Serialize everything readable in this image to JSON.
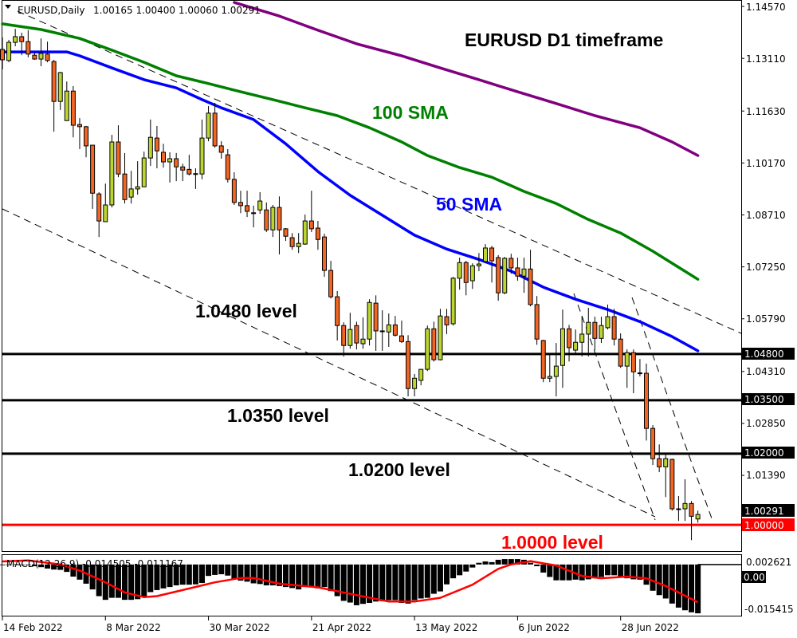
{
  "header": {
    "symbol": "EURUSD,Daily",
    "ohlc": "1.00165 1.00400 1.00060 1.00291"
  },
  "annotations": {
    "title": "EURUSD D1 timeframe",
    "sma100": "100 SMA",
    "sma50": "50 SMA"
  },
  "chart_data": {
    "type": "candlestick",
    "title": "EURUSD D1 timeframe",
    "xlabel": "",
    "ylabel": "",
    "ylim": [
      0.9924,
      1.1475
    ],
    "grid": false,
    "colors": {
      "bull": "#bcd630",
      "bear": "#f26522",
      "outline": "#000000"
    },
    "x_ticks": [
      {
        "label": "14 Feb 2022",
        "bar": 0
      },
      {
        "label": "8 Mar 2022",
        "bar": 16
      },
      {
        "label": "30 Mar 2022",
        "bar": 32
      },
      {
        "label": "21 Apr 2022",
        "bar": 48
      },
      {
        "label": "13 May 2022",
        "bar": 64
      },
      {
        "label": "6 Jun 2022",
        "bar": 80
      },
      {
        "label": "28 Jun 2022",
        "bar": 96
      }
    ],
    "y_ticks": [
      "1.14570",
      "1.13110",
      "1.11630",
      "1.10170",
      "1.08710",
      "1.07250",
      "1.05790",
      "1.04310",
      "1.02850",
      "1.01390"
    ],
    "candles_ohlc": [
      [
        1.1336,
        1.137,
        1.128,
        1.1307
      ],
      [
        1.1305,
        1.1363,
        1.13,
        1.1356
      ],
      [
        1.1356,
        1.1394,
        1.1345,
        1.1372
      ],
      [
        1.1372,
        1.1383,
        1.132,
        1.1358
      ],
      [
        1.1358,
        1.139,
        1.1314,
        1.1323
      ],
      [
        1.132,
        1.1327,
        1.1307,
        1.1309
      ],
      [
        1.1309,
        1.1367,
        1.1289,
        1.1325
      ],
      [
        1.1323,
        1.1358,
        1.13,
        1.1305
      ],
      [
        1.1302,
        1.1307,
        1.1105,
        1.119
      ],
      [
        1.119,
        1.1273,
        1.1166,
        1.1271
      ],
      [
        1.1136,
        1.1246,
        1.1136,
        1.1219
      ],
      [
        1.1219,
        1.1233,
        1.1089,
        1.1123
      ],
      [
        1.1125,
        1.1143,
        1.1056,
        1.1119
      ],
      [
        1.1119,
        1.1121,
        1.1033,
        1.1065
      ],
      [
        1.1067,
        1.1067,
        1.0888,
        1.0932
      ],
      [
        1.093,
        1.0935,
        1.0809,
        1.0854
      ],
      [
        1.0852,
        1.0959,
        1.0852,
        1.0899
      ],
      [
        1.0899,
        1.1096,
        1.0892,
        1.1076
      ],
      [
        1.1076,
        1.1123,
        1.0977,
        1.0986
      ],
      [
        1.0986,
        1.1045,
        1.0903,
        1.0914
      ],
      [
        1.0921,
        1.0995,
        1.0903,
        1.0944
      ],
      [
        1.0944,
        1.1022,
        1.0928,
        1.095
      ],
      [
        1.095,
        1.1049,
        1.095,
        1.1031
      ],
      [
        1.1031,
        1.1139,
        1.1009,
        1.1089
      ],
      [
        1.1087,
        1.1121,
        1.1002,
        1.1051
      ],
      [
        1.1047,
        1.1071,
        1.1004,
        1.102
      ],
      [
        1.102,
        1.1047,
        1.0962,
        1.1029
      ],
      [
        1.1029,
        1.1045,
        1.0966,
        1.1006
      ],
      [
        1.1006,
        1.1015,
        1.0966,
        1.0997
      ],
      [
        1.0999,
        1.104,
        1.0982,
        1.0986
      ],
      [
        1.0986,
        1.1002,
        1.0944,
        1.0987
      ],
      [
        1.0986,
        1.1139,
        1.0971,
        1.1087
      ],
      [
        1.1087,
        1.1177,
        1.1078,
        1.1157
      ],
      [
        1.1157,
        1.1186,
        1.106,
        1.1065
      ],
      [
        1.1065,
        1.1078,
        1.1029,
        1.1047
      ],
      [
        1.104,
        1.1056,
        1.0962,
        1.0971
      ],
      [
        1.0971,
        1.0991,
        1.0899,
        1.0906
      ],
      [
        1.0906,
        1.0939,
        1.0876,
        1.0897
      ],
      [
        1.0897,
        1.0939,
        1.0865,
        1.0881
      ],
      [
        1.0876,
        1.0897,
        1.0836,
        1.0877
      ],
      [
        1.0885,
        1.0935,
        1.0874,
        1.091
      ],
      [
        1.0885,
        1.0906,
        1.0823,
        1.0829
      ],
      [
        1.0829,
        1.0899,
        1.0809,
        1.0892
      ],
      [
        1.0892,
        1.0923,
        1.076,
        1.0829
      ],
      [
        1.0832,
        1.0834,
        1.0798,
        1.0811
      ],
      [
        1.0807,
        1.082,
        1.0773,
        1.0782
      ],
      [
        1.0782,
        1.082,
        1.0764,
        1.0791
      ],
      [
        1.0789,
        1.0872,
        1.0787,
        1.0854
      ],
      [
        1.0854,
        1.0939,
        1.0823,
        1.0832
      ],
      [
        1.0834,
        1.0854,
        1.0773,
        1.0802
      ],
      [
        1.0809,
        1.0818,
        1.0697,
        1.0715
      ],
      [
        1.0715,
        1.0742,
        1.0636,
        1.0641
      ],
      [
        1.0641,
        1.0657,
        1.0518,
        1.056
      ],
      [
        1.056,
        1.0569,
        1.0473,
        1.0504
      ],
      [
        1.0504,
        1.0596,
        1.0495,
        1.0549
      ],
      [
        1.056,
        1.0571,
        1.0493,
        1.0511
      ],
      [
        1.0509,
        1.0583,
        1.0495,
        1.0522
      ],
      [
        1.0522,
        1.0634,
        1.0504,
        1.0625
      ],
      [
        1.0623,
        1.0645,
        1.0489,
        1.0545
      ],
      [
        1.0545,
        1.0603,
        1.0489,
        1.0544
      ],
      [
        1.0542,
        1.0594,
        1.05,
        1.0562
      ],
      [
        1.0562,
        1.0587,
        1.0529,
        1.0533
      ],
      [
        1.0531,
        1.0574,
        1.0511,
        1.0515
      ],
      [
        1.0515,
        1.0533,
        1.0361,
        1.0383
      ],
      [
        1.0383,
        1.0424,
        1.0361,
        1.0412
      ],
      [
        1.0406,
        1.0437,
        1.0392,
        1.0437
      ],
      [
        1.0437,
        1.056,
        1.0432,
        1.0551
      ],
      [
        1.0551,
        1.0571,
        1.0459,
        1.0464
      ],
      [
        1.0464,
        1.0607,
        1.0462,
        1.0587
      ],
      [
        1.0585,
        1.0607,
        1.0536,
        1.0562
      ],
      [
        1.0565,
        1.0697,
        1.056,
        1.0693
      ],
      [
        1.0693,
        1.0751,
        1.0661,
        1.0737
      ],
      [
        1.0737,
        1.0742,
        1.0645,
        1.0681
      ],
      [
        1.0686,
        1.0735,
        1.0663,
        1.0728
      ],
      [
        1.0728,
        1.0764,
        1.0713,
        1.0733
      ],
      [
        1.074,
        1.0789,
        1.0737,
        1.0778
      ],
      [
        1.0778,
        1.0784,
        1.0681,
        1.0742
      ],
      [
        1.0751,
        1.0758,
        1.063,
        1.0652
      ],
      [
        1.0652,
        1.0753,
        1.0648,
        1.0749
      ],
      [
        1.0749,
        1.0762,
        1.0706,
        1.0722
      ],
      [
        1.0722,
        1.0751,
        1.0686,
        1.0699
      ],
      [
        1.0699,
        1.0751,
        1.0652,
        1.0719
      ],
      [
        1.0719,
        1.0773,
        1.0614,
        1.0619
      ],
      [
        1.0619,
        1.0643,
        1.0506,
        1.0522
      ],
      [
        1.0518,
        1.052,
        1.0401,
        1.0412
      ],
      [
        1.0412,
        1.0482,
        1.0401,
        1.0417
      ],
      [
        1.0417,
        1.0511,
        1.0361,
        1.0446
      ],
      [
        1.0448,
        1.0605,
        1.0385,
        1.0551
      ],
      [
        1.0551,
        1.0562,
        1.0459,
        1.0498
      ],
      [
        1.0491,
        1.0549,
        1.048,
        1.0513
      ],
      [
        1.0513,
        1.0587,
        1.0473,
        1.0536
      ],
      [
        1.0536,
        1.061,
        1.0473,
        1.0569
      ],
      [
        1.0569,
        1.0585,
        1.0491,
        1.0524
      ],
      [
        1.0524,
        1.0585,
        1.0511,
        1.056
      ],
      [
        1.0554,
        1.0619,
        1.0549,
        1.0585
      ],
      [
        1.0585,
        1.0607,
        1.0504,
        1.0522
      ],
      [
        1.0522,
        1.0538,
        1.0441,
        1.0446
      ],
      [
        1.0446,
        1.0493,
        1.0385,
        1.0484
      ],
      [
        1.0484,
        1.0493,
        1.037,
        1.043
      ],
      [
        1.0426,
        1.0466,
        1.0417,
        1.0427
      ],
      [
        1.0426,
        1.0453,
        1.0237,
        1.0271
      ],
      [
        1.0271,
        1.028,
        1.0168,
        1.0186
      ],
      [
        1.0186,
        1.0226,
        1.0148,
        1.0163
      ],
      [
        1.0163,
        1.0197,
        1.0078,
        1.0186
      ],
      [
        1.0184,
        1.0186,
        1.004,
        1.0045
      ],
      [
        1.0045,
        1.0081,
        1.0011,
        1.0044
      ],
      [
        1.0045,
        1.0128,
        1.0011,
        1.006
      ],
      [
        1.006,
        1.0067,
        0.9957,
        1.0024
      ],
      [
        1.00165,
        1.004,
        1.0006,
        1.00291
      ]
    ],
    "moving_averages": [
      {
        "name": "50 SMA",
        "color": "#0000ff",
        "points": [
          [
            0,
            1.1329
          ],
          [
            10,
            1.1329
          ],
          [
            12,
            1.1318
          ],
          [
            17,
            1.1284
          ],
          [
            22,
            1.1251
          ],
          [
            27,
            1.1228
          ],
          [
            31,
            1.1195
          ],
          [
            34,
            1.1172
          ],
          [
            39,
            1.1139
          ],
          [
            44,
            1.1071
          ],
          [
            49,
            1.0993
          ],
          [
            54,
            1.0926
          ],
          [
            59,
            1.087
          ],
          [
            64,
            1.0814
          ],
          [
            69,
            1.0775
          ],
          [
            74,
            1.0746
          ],
          [
            79,
            1.0713
          ],
          [
            84,
            1.0668
          ],
          [
            89,
            1.0634
          ],
          [
            94,
            1.0605
          ],
          [
            99,
            1.0571
          ],
          [
            104,
            1.0529
          ],
          [
            108,
            1.0489
          ]
        ]
      },
      {
        "name": "100 SMA",
        "color": "#008000",
        "points": [
          [
            0,
            1.1408
          ],
          [
            6,
            1.1392
          ],
          [
            12,
            1.1367
          ],
          [
            17,
            1.1334
          ],
          [
            22,
            1.13
          ],
          [
            27,
            1.1262
          ],
          [
            32,
            1.124
          ],
          [
            37,
            1.1217
          ],
          [
            42,
            1.1195
          ],
          [
            47,
            1.1172
          ],
          [
            52,
            1.115
          ],
          [
            57,
            1.1116
          ],
          [
            62,
            1.1076
          ],
          [
            66,
            1.1038
          ],
          [
            71,
            1.1004
          ],
          [
            76,
            1.0977
          ],
          [
            81,
            1.0937
          ],
          [
            86,
            1.0903
          ],
          [
            91,
            1.0858
          ],
          [
            96,
            1.082
          ],
          [
            101,
            1.0769
          ],
          [
            105,
            1.0724
          ],
          [
            108,
            1.069
          ]
        ]
      },
      {
        "name": "",
        "color": "#800080",
        "points": [
          [
            36,
            1.1468
          ],
          [
            43,
            1.143
          ],
          [
            49,
            1.139
          ],
          [
            55,
            1.1352
          ],
          [
            62,
            1.1318
          ],
          [
            68,
            1.1284
          ],
          [
            74,
            1.1251
          ],
          [
            80,
            1.1217
          ],
          [
            86,
            1.1184
          ],
          [
            92,
            1.115
          ],
          [
            99,
            1.1116
          ],
          [
            104,
            1.1076
          ],
          [
            108,
            1.1038
          ]
        ]
      }
    ],
    "levels": [
      {
        "value": 1.048,
        "label": "1.0480 level",
        "axis_label": "1.04800",
        "color": "#000000"
      },
      {
        "value": 1.035,
        "label": "1.0350 level",
        "axis_label": "1.03500",
        "color": "#000000"
      },
      {
        "value": 1.02,
        "label": "1.0200 level",
        "axis_label": "1.02000",
        "color": "#000000"
      },
      {
        "value": 1.0,
        "label": "1.0000 level",
        "axis_label": "1.00000",
        "color": "#ff0000"
      }
    ],
    "last_price": {
      "value": 1.00291,
      "label": "1.00291"
    },
    "macd": {
      "label": "MACD(12,26,9) -0.014505 -0.011167",
      "ylim": [
        -0.0152,
        0.0028
      ],
      "axis_labels": [
        "0.002621",
        "-0.015415"
      ],
      "zero_label": "0.00",
      "signal_color": "#ff0000",
      "histogram": [
        -0.0002,
        0,
        0.0001,
        0,
        -0.0002,
        -0.0005,
        -0.0008,
        -0.0012,
        -0.0015,
        -0.0016,
        -0.0022,
        -0.0036,
        -0.0045,
        -0.0057,
        -0.0074,
        -0.0094,
        -0.0105,
        -0.0099,
        -0.0099,
        -0.0105,
        -0.0105,
        -0.0103,
        -0.0094,
        -0.0082,
        -0.0076,
        -0.0071,
        -0.0067,
        -0.0062,
        -0.006,
        -0.006,
        -0.0059,
        -0.0055,
        -0.0034,
        -0.0031,
        -0.0029,
        -0.0033,
        -0.0043,
        -0.0048,
        -0.0051,
        -0.0056,
        -0.0058,
        -0.0062,
        -0.0062,
        -0.0064,
        -0.0067,
        -0.007,
        -0.0074,
        -0.0067,
        -0.0067,
        -0.0071,
        -0.0067,
        -0.0079,
        -0.0094,
        -0.0108,
        -0.0113,
        -0.0121,
        -0.0117,
        -0.0114,
        -0.011,
        -0.0109,
        -0.0106,
        -0.0106,
        -0.0114,
        -0.0116,
        -0.0106,
        -0.0101,
        -0.0099,
        -0.0087,
        -0.008,
        -0.0059,
        -0.0041,
        -0.0032,
        -0.0021,
        -0.0009,
        0.0005,
        0.0009,
        0.0007,
        0.0014,
        0.0016,
        0.0016,
        0.0016,
        0.0014,
        0.0005,
        -0.0005,
        -0.0024,
        -0.0037,
        -0.0047,
        -0.0047,
        -0.0047,
        -0.0045,
        -0.0047,
        -0.0044,
        -0.0041,
        -0.0037,
        -0.0032,
        -0.0032,
        -0.0037,
        -0.0041,
        -0.0044,
        -0.0045,
        -0.006,
        -0.0078,
        -0.0091,
        -0.0101,
        -0.0116,
        -0.0128,
        -0.0136,
        -0.0142,
        -0.0145
      ],
      "signal": [
        [
          0,
          0.0009
        ],
        [
          4,
          0.0012
        ],
        [
          9,
          0
        ],
        [
          12,
          -0.0018
        ],
        [
          16,
          -0.0053
        ],
        [
          19,
          -0.0083
        ],
        [
          22,
          -0.0097
        ],
        [
          24,
          -0.0094
        ],
        [
          28,
          -0.0076
        ],
        [
          33,
          -0.0053
        ],
        [
          37,
          -0.004
        ],
        [
          39,
          -0.004
        ],
        [
          43,
          -0.0057
        ],
        [
          49,
          -0.0068
        ],
        [
          55,
          -0.0091
        ],
        [
          60,
          -0.011
        ],
        [
          64,
          -0.011
        ],
        [
          68,
          -0.0099
        ],
        [
          73,
          -0.006
        ],
        [
          77,
          -0.0013
        ],
        [
          79,
          0
        ],
        [
          82,
          0.001
        ],
        [
          86,
          -0.0003
        ],
        [
          90,
          -0.0034
        ],
        [
          93,
          -0.0041
        ],
        [
          97,
          -0.0036
        ],
        [
          100,
          -0.0041
        ],
        [
          103,
          -0.0064
        ],
        [
          108,
          -0.0112
        ]
      ]
    }
  }
}
